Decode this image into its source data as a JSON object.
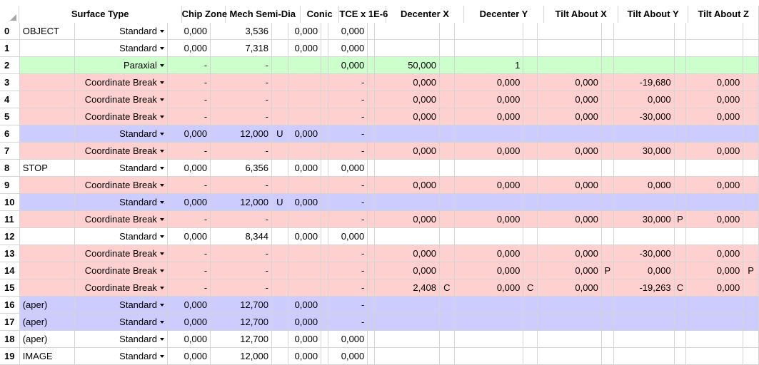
{
  "headers": {
    "surface_type": "Surface Type",
    "chip_zone": "Chip Zone",
    "mech_semi_dia": "Mech Semi-Dia",
    "conic": "Conic",
    "tce": "TCE x 1E-6",
    "decenter_x": "Decenter X",
    "decenter_y": "Decenter Y",
    "tilt_x": "Tilt About X",
    "tilt_y": "Tilt About Y",
    "tilt_z": "Tilt About Z"
  },
  "colors": {
    "white": "#ffffff",
    "green": "#ccffcc",
    "red": "#ffd0d0",
    "blue": "#ccccff"
  },
  "rows": [
    {
      "num": "0",
      "color": "white",
      "comment": "OBJECT",
      "stype": "Standard",
      "chip": "0,000",
      "mech": "3,536",
      "mech_s": "",
      "conic": "0,000",
      "conic_s": "",
      "tce": "0,000",
      "tce_s": "",
      "decx": "",
      "decx_s": "",
      "decy": "",
      "decy_s": "",
      "tiltx": "",
      "tiltx_s": "",
      "tilty": "",
      "tilty_s": "",
      "tiltz": "",
      "tiltz_s": ""
    },
    {
      "num": "1",
      "color": "white",
      "comment": "",
      "stype": "Standard",
      "chip": "0,000",
      "mech": "7,318",
      "mech_s": "",
      "conic": "0,000",
      "conic_s": "",
      "tce": "0,000",
      "tce_s": "",
      "decx": "",
      "decx_s": "",
      "decy": "",
      "decy_s": "",
      "tiltx": "",
      "tiltx_s": "",
      "tilty": "",
      "tilty_s": "",
      "tiltz": "",
      "tiltz_s": ""
    },
    {
      "num": "2",
      "color": "green",
      "comment": "",
      "stype": "Paraxial",
      "chip": "-",
      "mech": "-",
      "mech_s": "",
      "conic": "",
      "conic_s": "",
      "tce": "0,000",
      "tce_s": "",
      "decx": "50,000",
      "decx_s": "",
      "decy": "1",
      "decy_s": "",
      "tiltx": "",
      "tiltx_s": "",
      "tilty": "",
      "tilty_s": "",
      "tiltz": "",
      "tiltz_s": ""
    },
    {
      "num": "3",
      "color": "red",
      "comment": "",
      "stype": "Coordinate Break",
      "chip": "-",
      "mech": "-",
      "mech_s": "",
      "conic": "",
      "conic_s": "",
      "tce": "-",
      "tce_s": "",
      "decx": "0,000",
      "decx_s": "",
      "decy": "0,000",
      "decy_s": "",
      "tiltx": "0,000",
      "tiltx_s": "",
      "tilty": "-19,680",
      "tilty_s": "",
      "tiltz": "0,000",
      "tiltz_s": ""
    },
    {
      "num": "4",
      "color": "red",
      "comment": "",
      "stype": "Coordinate Break",
      "chip": "-",
      "mech": "-",
      "mech_s": "",
      "conic": "",
      "conic_s": "",
      "tce": "-",
      "tce_s": "",
      "decx": "0,000",
      "decx_s": "",
      "decy": "0,000",
      "decy_s": "",
      "tiltx": "0,000",
      "tiltx_s": "",
      "tilty": "0,000",
      "tilty_s": "",
      "tiltz": "0,000",
      "tiltz_s": ""
    },
    {
      "num": "5",
      "color": "red",
      "comment": "",
      "stype": "Coordinate Break",
      "chip": "-",
      "mech": "-",
      "mech_s": "",
      "conic": "",
      "conic_s": "",
      "tce": "-",
      "tce_s": "",
      "decx": "0,000",
      "decx_s": "",
      "decy": "0,000",
      "decy_s": "",
      "tiltx": "0,000",
      "tiltx_s": "",
      "tilty": "-30,000",
      "tilty_s": "",
      "tiltz": "0,000",
      "tiltz_s": ""
    },
    {
      "num": "6",
      "color": "blue",
      "comment": "",
      "stype": "Standard",
      "chip": "0,000",
      "mech": "12,000",
      "mech_s": "U",
      "conic": "0,000",
      "conic_s": "",
      "tce": "-",
      "tce_s": "",
      "decx": "",
      "decx_s": "",
      "decy": "",
      "decy_s": "",
      "tiltx": "",
      "tiltx_s": "",
      "tilty": "",
      "tilty_s": "",
      "tiltz": "",
      "tiltz_s": ""
    },
    {
      "num": "7",
      "color": "red",
      "comment": "",
      "stype": "Coordinate Break",
      "chip": "-",
      "mech": "-",
      "mech_s": "",
      "conic": "",
      "conic_s": "",
      "tce": "-",
      "tce_s": "",
      "decx": "0,000",
      "decx_s": "",
      "decy": "0,000",
      "decy_s": "",
      "tiltx": "0,000",
      "tiltx_s": "",
      "tilty": "30,000",
      "tilty_s": "",
      "tiltz": "0,000",
      "tiltz_s": ""
    },
    {
      "num": "8",
      "color": "white",
      "comment": "STOP",
      "stype": "Standard",
      "chip": "0,000",
      "mech": "6,356",
      "mech_s": "",
      "conic": "0,000",
      "conic_s": "",
      "tce": "0,000",
      "tce_s": "",
      "decx": "",
      "decx_s": "",
      "decy": "",
      "decy_s": "",
      "tiltx": "",
      "tiltx_s": "",
      "tilty": "",
      "tilty_s": "",
      "tiltz": "",
      "tiltz_s": ""
    },
    {
      "num": "9",
      "color": "red",
      "comment": "",
      "stype": "Coordinate Break",
      "chip": "-",
      "mech": "-",
      "mech_s": "",
      "conic": "",
      "conic_s": "",
      "tce": "-",
      "tce_s": "",
      "decx": "0,000",
      "decx_s": "",
      "decy": "0,000",
      "decy_s": "",
      "tiltx": "0,000",
      "tiltx_s": "",
      "tilty": "0,000",
      "tilty_s": "",
      "tiltz": "0,000",
      "tiltz_s": ""
    },
    {
      "num": "10",
      "color": "blue",
      "comment": "",
      "stype": "Standard",
      "chip": "0,000",
      "mech": "12,000",
      "mech_s": "U",
      "conic": "0,000",
      "conic_s": "",
      "tce": "-",
      "tce_s": "",
      "decx": "",
      "decx_s": "",
      "decy": "",
      "decy_s": "",
      "tiltx": "",
      "tiltx_s": "",
      "tilty": "",
      "tilty_s": "",
      "tiltz": "",
      "tiltz_s": ""
    },
    {
      "num": "11",
      "color": "red",
      "comment": "",
      "stype": "Coordinate Break",
      "chip": "-",
      "mech": "-",
      "mech_s": "",
      "conic": "",
      "conic_s": "",
      "tce": "-",
      "tce_s": "",
      "decx": "0,000",
      "decx_s": "",
      "decy": "0,000",
      "decy_s": "",
      "tiltx": "0,000",
      "tiltx_s": "",
      "tilty": "30,000",
      "tilty_s": "P",
      "tiltz": "0,000",
      "tiltz_s": ""
    },
    {
      "num": "12",
      "color": "white",
      "comment": "",
      "stype": "Standard",
      "chip": "0,000",
      "mech": "8,344",
      "mech_s": "",
      "conic": "0,000",
      "conic_s": "",
      "tce": "0,000",
      "tce_s": "",
      "decx": "",
      "decx_s": "",
      "decy": "",
      "decy_s": "",
      "tiltx": "",
      "tiltx_s": "",
      "tilty": "",
      "tilty_s": "",
      "tiltz": "",
      "tiltz_s": ""
    },
    {
      "num": "13",
      "color": "red",
      "comment": "",
      "stype": "Coordinate Break",
      "chip": "-",
      "mech": "-",
      "mech_s": "",
      "conic": "",
      "conic_s": "",
      "tce": "-",
      "tce_s": "",
      "decx": "0,000",
      "decx_s": "",
      "decy": "0,000",
      "decy_s": "",
      "tiltx": "0,000",
      "tiltx_s": "",
      "tilty": "-30,000",
      "tilty_s": "",
      "tiltz": "0,000",
      "tiltz_s": ""
    },
    {
      "num": "14",
      "color": "red",
      "comment": "",
      "stype": "Coordinate Break",
      "chip": "-",
      "mech": "-",
      "mech_s": "",
      "conic": "",
      "conic_s": "",
      "tce": "-",
      "tce_s": "",
      "decx": "0,000",
      "decx_s": "",
      "decy": "0,000",
      "decy_s": "",
      "tiltx": "0,000",
      "tiltx_s": "P",
      "tilty": "0,000",
      "tilty_s": "",
      "tiltz": "0,000",
      "tiltz_s": "P"
    },
    {
      "num": "15",
      "color": "red",
      "comment": "",
      "stype": "Coordinate Break",
      "chip": "-",
      "mech": "-",
      "mech_s": "",
      "conic": "",
      "conic_s": "",
      "tce": "-",
      "tce_s": "",
      "decx": "2,408",
      "decx_s": "C",
      "decy": "0,000",
      "decy_s": "C",
      "tiltx": "0,000",
      "tiltx_s": "",
      "tilty": "-19,263",
      "tilty_s": "C",
      "tiltz": "0,000",
      "tiltz_s": ""
    },
    {
      "num": "16",
      "color": "blue",
      "comment": "(aper)",
      "stype": "Standard",
      "chip": "0,000",
      "mech": "12,700",
      "mech_s": "",
      "conic": "0,000",
      "conic_s": "",
      "tce": "-",
      "tce_s": "",
      "decx": "",
      "decx_s": "",
      "decy": "",
      "decy_s": "",
      "tiltx": "",
      "tiltx_s": "",
      "tilty": "",
      "tilty_s": "",
      "tiltz": "",
      "tiltz_s": ""
    },
    {
      "num": "17",
      "color": "blue",
      "comment": "(aper)",
      "stype": "Standard",
      "chip": "0,000",
      "mech": "12,700",
      "mech_s": "",
      "conic": "0,000",
      "conic_s": "",
      "tce": "-",
      "tce_s": "",
      "decx": "",
      "decx_s": "",
      "decy": "",
      "decy_s": "",
      "tiltx": "",
      "tiltx_s": "",
      "tilty": "",
      "tilty_s": "",
      "tiltz": "",
      "tiltz_s": ""
    },
    {
      "num": "18",
      "color": "white",
      "comment": "(aper)",
      "stype": "Standard",
      "chip": "0,000",
      "mech": "12,700",
      "mech_s": "",
      "conic": "0,000",
      "conic_s": "",
      "tce": "0,000",
      "tce_s": "",
      "decx": "",
      "decx_s": "",
      "decy": "",
      "decy_s": "",
      "tiltx": "",
      "tiltx_s": "",
      "tilty": "",
      "tilty_s": "",
      "tiltz": "",
      "tiltz_s": ""
    },
    {
      "num": "19",
      "color": "white",
      "comment": "IMAGE",
      "stype": "Standard",
      "chip": "0,000",
      "mech": "12,000",
      "mech_s": "",
      "conic": "0,000",
      "conic_s": "",
      "tce": "0,000",
      "tce_s": "",
      "decx": "",
      "decx_s": "",
      "decy": "",
      "decy_s": "",
      "tiltx": "",
      "tiltx_s": "",
      "tilty": "",
      "tilty_s": "",
      "tiltz": "",
      "tiltz_s": ""
    }
  ]
}
